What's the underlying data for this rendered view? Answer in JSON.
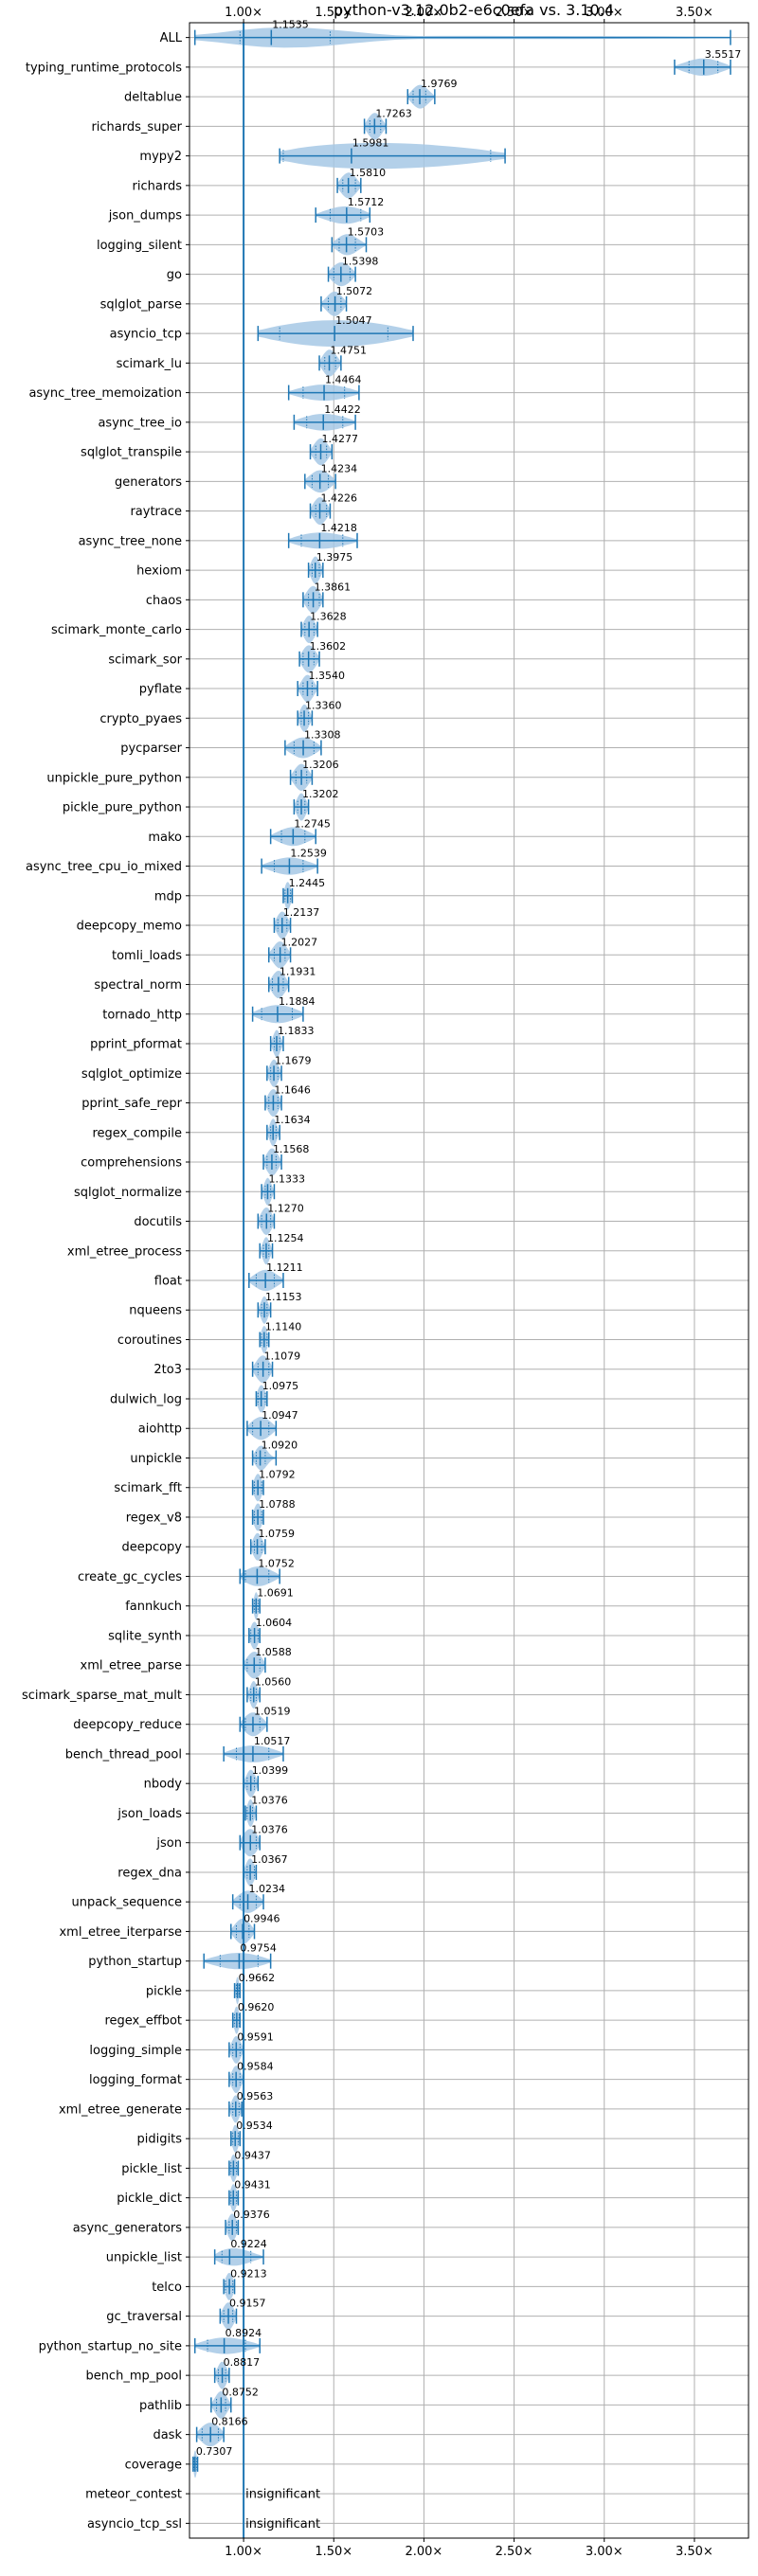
{
  "chart_data": {
    "type": "violin",
    "title": "python-v3.12.0b2-e6c0efa vs. 3.10.4",
    "xlabel": "",
    "ylabel": "",
    "xlim": [
      0.7,
      3.8
    ],
    "xticks": [
      {
        "value": 1.0,
        "label": "1.00×"
      },
      {
        "value": 1.5,
        "label": "1.50×"
      },
      {
        "value": 2.0,
        "label": "2.00×"
      },
      {
        "value": 2.5,
        "label": "2.50×"
      },
      {
        "value": 3.0,
        "label": "3.00×"
      },
      {
        "value": 3.5,
        "label": "3.50×"
      }
    ],
    "reference_line": 1.0,
    "grid": true,
    "colors": {
      "violin": "#a6c8e5",
      "line": "#1f77b4",
      "grid": "#b0b0b0"
    },
    "insignificant_text": "insignificant",
    "benchmarks": [
      {
        "name": "ALL",
        "label": "1.1535",
        "median": 1.1535,
        "min": 0.73,
        "max": 3.7,
        "q1": 0.98,
        "q3": 1.48,
        "width": 0.45
      },
      {
        "name": "typing_runtime_protocols",
        "label": "3.5517",
        "median": 3.5517,
        "min": 3.39,
        "max": 3.7,
        "q1": 3.47,
        "q3": 3.63,
        "width": 0.9
      },
      {
        "name": "deltablue",
        "label": "1.9769",
        "median": 1.9769,
        "min": 1.91,
        "max": 2.06,
        "q1": 1.94,
        "q3": 2.01,
        "width": 0.8
      },
      {
        "name": "richards_super",
        "label": "1.7263",
        "median": 1.7263,
        "min": 1.67,
        "max": 1.79,
        "q1": 1.7,
        "q3": 1.76,
        "width": 0.8
      },
      {
        "name": "mypy2",
        "label": "1.5981",
        "median": 1.5981,
        "min": 1.2,
        "max": 2.45,
        "q1": 1.22,
        "q3": 2.37,
        "width": 0.8
      },
      {
        "name": "richards",
        "label": "1.5810",
        "median": 1.581,
        "min": 1.52,
        "max": 1.65,
        "q1": 1.55,
        "q3": 1.62,
        "width": 0.8
      },
      {
        "name": "json_dumps",
        "label": "1.5712",
        "median": 1.5712,
        "min": 1.4,
        "max": 1.7,
        "q1": 1.48,
        "q3": 1.65,
        "width": 0.8
      },
      {
        "name": "logging_silent",
        "label": "1.5703",
        "median": 1.5703,
        "min": 1.49,
        "max": 1.68,
        "q1": 1.53,
        "q3": 1.62,
        "width": 0.8
      },
      {
        "name": "go",
        "label": "1.5398",
        "median": 1.5398,
        "min": 1.47,
        "max": 1.62,
        "q1": 1.5,
        "q3": 1.59,
        "width": 0.8
      },
      {
        "name": "sqlglot_parse",
        "label": "1.5072",
        "median": 1.5072,
        "min": 1.43,
        "max": 1.57,
        "q1": 1.47,
        "q3": 1.54,
        "width": 0.8
      },
      {
        "name": "asyncio_tcp",
        "label": "1.5047",
        "median": 1.5047,
        "min": 1.08,
        "max": 1.94,
        "q1": 1.2,
        "q3": 1.8,
        "width": 0.8
      },
      {
        "name": "scimark_lu",
        "label": "1.4751",
        "median": 1.4751,
        "min": 1.42,
        "max": 1.54,
        "q1": 1.45,
        "q3": 1.51,
        "width": 0.8
      },
      {
        "name": "async_tree_memoization",
        "label": "1.4464",
        "median": 1.4464,
        "min": 1.25,
        "max": 1.64,
        "q1": 1.33,
        "q3": 1.56,
        "width": 0.8
      },
      {
        "name": "async_tree_io",
        "label": "1.4422",
        "median": 1.4422,
        "min": 1.28,
        "max": 1.62,
        "q1": 1.35,
        "q3": 1.55,
        "width": 0.8
      },
      {
        "name": "sqlglot_transpile",
        "label": "1.4277",
        "median": 1.4277,
        "min": 1.37,
        "max": 1.49,
        "q1": 1.4,
        "q3": 1.46,
        "width": 0.8
      },
      {
        "name": "generators",
        "label": "1.4234",
        "median": 1.4234,
        "min": 1.34,
        "max": 1.51,
        "q1": 1.38,
        "q3": 1.47,
        "width": 0.8
      },
      {
        "name": "raytrace",
        "label": "1.4226",
        "median": 1.4226,
        "min": 1.37,
        "max": 1.48,
        "q1": 1.4,
        "q3": 1.46,
        "width": 0.8
      },
      {
        "name": "async_tree_none",
        "label": "1.4218",
        "median": 1.4218,
        "min": 1.25,
        "max": 1.63,
        "q1": 1.32,
        "q3": 1.55,
        "width": 0.8
      },
      {
        "name": "hexiom",
        "label": "1.3975",
        "median": 1.3975,
        "min": 1.36,
        "max": 1.44,
        "q1": 1.38,
        "q3": 1.42,
        "width": 0.8
      },
      {
        "name": "chaos",
        "label": "1.3861",
        "median": 1.3861,
        "min": 1.33,
        "max": 1.44,
        "q1": 1.36,
        "q3": 1.42,
        "width": 0.8
      },
      {
        "name": "scimark_monte_carlo",
        "label": "1.3628",
        "median": 1.3628,
        "min": 1.32,
        "max": 1.41,
        "q1": 1.34,
        "q3": 1.39,
        "width": 0.8
      },
      {
        "name": "scimark_sor",
        "label": "1.3602",
        "median": 1.3602,
        "min": 1.31,
        "max": 1.42,
        "q1": 1.33,
        "q3": 1.39,
        "width": 0.8
      },
      {
        "name": "pyflate",
        "label": "1.3540",
        "median": 1.354,
        "min": 1.3,
        "max": 1.41,
        "q1": 1.33,
        "q3": 1.38,
        "width": 0.8
      },
      {
        "name": "crypto_pyaes",
        "label": "1.3360",
        "median": 1.336,
        "min": 1.3,
        "max": 1.38,
        "q1": 1.32,
        "q3": 1.36,
        "width": 0.8
      },
      {
        "name": "pycparser",
        "label": "1.3308",
        "median": 1.3308,
        "min": 1.23,
        "max": 1.43,
        "q1": 1.28,
        "q3": 1.39,
        "width": 0.8
      },
      {
        "name": "unpickle_pure_python",
        "label": "1.3206",
        "median": 1.3206,
        "min": 1.26,
        "max": 1.38,
        "q1": 1.29,
        "q3": 1.35,
        "width": 0.8
      },
      {
        "name": "pickle_pure_python",
        "label": "1.3202",
        "median": 1.3202,
        "min": 1.28,
        "max": 1.36,
        "q1": 1.3,
        "q3": 1.34,
        "width": 0.8
      },
      {
        "name": "mako",
        "label": "1.2745",
        "median": 1.2745,
        "min": 1.15,
        "max": 1.4,
        "q1": 1.21,
        "q3": 1.34,
        "width": 0.8
      },
      {
        "name": "async_tree_cpu_io_mixed",
        "label": "1.2539",
        "median": 1.2539,
        "min": 1.1,
        "max": 1.41,
        "q1": 1.17,
        "q3": 1.33,
        "width": 0.8
      },
      {
        "name": "mdp",
        "label": "1.2445",
        "median": 1.2445,
        "min": 1.22,
        "max": 1.27,
        "q1": 1.23,
        "q3": 1.26,
        "width": 0.8
      },
      {
        "name": "deepcopy_memo",
        "label": "1.2137",
        "median": 1.2137,
        "min": 1.17,
        "max": 1.26,
        "q1": 1.19,
        "q3": 1.24,
        "width": 0.8
      },
      {
        "name": "tomli_loads",
        "label": "1.2027",
        "median": 1.2027,
        "min": 1.14,
        "max": 1.26,
        "q1": 1.17,
        "q3": 1.23,
        "width": 0.8
      },
      {
        "name": "spectral_norm",
        "label": "1.1931",
        "median": 1.1931,
        "min": 1.14,
        "max": 1.25,
        "q1": 1.16,
        "q3": 1.22,
        "width": 0.8
      },
      {
        "name": "tornado_http",
        "label": "1.1884",
        "median": 1.1884,
        "min": 1.05,
        "max": 1.33,
        "q1": 1.1,
        "q3": 1.27,
        "width": 0.8
      },
      {
        "name": "pprint_pformat",
        "label": "1.1833",
        "median": 1.1833,
        "min": 1.15,
        "max": 1.22,
        "q1": 1.17,
        "q3": 1.2,
        "width": 0.8
      },
      {
        "name": "sqlglot_optimize",
        "label": "1.1679",
        "median": 1.1679,
        "min": 1.13,
        "max": 1.21,
        "q1": 1.15,
        "q3": 1.19,
        "width": 0.8
      },
      {
        "name": "pprint_safe_repr",
        "label": "1.1646",
        "median": 1.1646,
        "min": 1.12,
        "max": 1.21,
        "q1": 1.14,
        "q3": 1.19,
        "width": 0.8
      },
      {
        "name": "regex_compile",
        "label": "1.1634",
        "median": 1.1634,
        "min": 1.13,
        "max": 1.2,
        "q1": 1.15,
        "q3": 1.18,
        "width": 0.8
      },
      {
        "name": "comprehensions",
        "label": "1.1568",
        "median": 1.1568,
        "min": 1.11,
        "max": 1.21,
        "q1": 1.13,
        "q3": 1.18,
        "width": 0.8
      },
      {
        "name": "sqlglot_normalize",
        "label": "1.1333",
        "median": 1.1333,
        "min": 1.1,
        "max": 1.17,
        "q1": 1.12,
        "q3": 1.15,
        "width": 0.8
      },
      {
        "name": "docutils",
        "label": "1.1270",
        "median": 1.127,
        "min": 1.08,
        "max": 1.17,
        "q1": 1.1,
        "q3": 1.15,
        "width": 0.8
      },
      {
        "name": "xml_etree_process",
        "label": "1.1254",
        "median": 1.1254,
        "min": 1.09,
        "max": 1.16,
        "q1": 1.11,
        "q3": 1.14,
        "width": 0.8
      },
      {
        "name": "float",
        "label": "1.1211",
        "median": 1.1211,
        "min": 1.03,
        "max": 1.22,
        "q1": 1.07,
        "q3": 1.17,
        "width": 0.8
      },
      {
        "name": "nqueens",
        "label": "1.1153",
        "median": 1.1153,
        "min": 1.08,
        "max": 1.15,
        "q1": 1.1,
        "q3": 1.13,
        "width": 0.8
      },
      {
        "name": "coroutines",
        "label": "1.1140",
        "median": 1.114,
        "min": 1.09,
        "max": 1.14,
        "q1": 1.1,
        "q3": 1.13,
        "width": 0.8
      },
      {
        "name": "2to3",
        "label": "1.1079",
        "median": 1.1079,
        "min": 1.05,
        "max": 1.16,
        "q1": 1.08,
        "q3": 1.14,
        "width": 0.8
      },
      {
        "name": "dulwich_log",
        "label": "1.0975",
        "median": 1.0975,
        "min": 1.07,
        "max": 1.13,
        "q1": 1.08,
        "q3": 1.12,
        "width": 0.8
      },
      {
        "name": "aiohttp",
        "label": "1.0947",
        "median": 1.0947,
        "min": 1.02,
        "max": 1.18,
        "q1": 1.05,
        "q3": 1.14,
        "width": 0.8
      },
      {
        "name": "unpickle",
        "label": "1.0920",
        "median": 1.092,
        "min": 1.05,
        "max": 1.18,
        "q1": 1.07,
        "q3": 1.12,
        "width": 0.8
      },
      {
        "name": "scimark_fft",
        "label": "1.0792",
        "median": 1.0792,
        "min": 1.05,
        "max": 1.11,
        "q1": 1.06,
        "q3": 1.1,
        "width": 0.8
      },
      {
        "name": "regex_v8",
        "label": "1.0788",
        "median": 1.0788,
        "min": 1.05,
        "max": 1.11,
        "q1": 1.06,
        "q3": 1.1,
        "width": 0.8
      },
      {
        "name": "deepcopy",
        "label": "1.0759",
        "median": 1.0759,
        "min": 1.04,
        "max": 1.12,
        "q1": 1.06,
        "q3": 1.1,
        "width": 0.8
      },
      {
        "name": "create_gc_cycles",
        "label": "1.0752",
        "median": 1.0752,
        "min": 0.98,
        "max": 1.2,
        "q1": 1.01,
        "q3": 1.14,
        "width": 0.8
      },
      {
        "name": "fannkuch",
        "label": "1.0691",
        "median": 1.0691,
        "min": 1.05,
        "max": 1.09,
        "q1": 1.06,
        "q3": 1.08,
        "width": 0.8
      },
      {
        "name": "sqlite_synth",
        "label": "1.0604",
        "median": 1.0604,
        "min": 1.03,
        "max": 1.09,
        "q1": 1.04,
        "q3": 1.08,
        "width": 0.8
      },
      {
        "name": "xml_etree_parse",
        "label": "1.0588",
        "median": 1.0588,
        "min": 1.0,
        "max": 1.12,
        "q1": 1.02,
        "q3": 1.09,
        "width": 0.8
      },
      {
        "name": "scimark_sparse_mat_mult",
        "label": "1.0560",
        "median": 1.056,
        "min": 1.02,
        "max": 1.09,
        "q1": 1.04,
        "q3": 1.07,
        "width": 0.8
      },
      {
        "name": "deepcopy_reduce",
        "label": "1.0519",
        "median": 1.0519,
        "min": 0.98,
        "max": 1.13,
        "q1": 1.01,
        "q3": 1.09,
        "width": 0.8
      },
      {
        "name": "bench_thread_pool",
        "label": "1.0517",
        "median": 1.0517,
        "min": 0.89,
        "max": 1.22,
        "q1": 0.96,
        "q3": 1.14,
        "width": 0.8
      },
      {
        "name": "nbody",
        "label": "1.0399",
        "median": 1.0399,
        "min": 1.0,
        "max": 1.08,
        "q1": 1.02,
        "q3": 1.06,
        "width": 0.8
      },
      {
        "name": "json_loads",
        "label": "1.0376",
        "median": 1.0376,
        "min": 1.01,
        "max": 1.07,
        "q1": 1.02,
        "q3": 1.05,
        "width": 0.8
      },
      {
        "name": "json",
        "label": "1.0376",
        "median": 1.0376,
        "min": 0.98,
        "max": 1.09,
        "q1": 1.0,
        "q3": 1.07,
        "width": 0.8
      },
      {
        "name": "regex_dna",
        "label": "1.0367",
        "median": 1.0367,
        "min": 1.0,
        "max": 1.07,
        "q1": 1.02,
        "q3": 1.06,
        "width": 0.8
      },
      {
        "name": "unpack_sequence",
        "label": "1.0234",
        "median": 1.0234,
        "min": 0.94,
        "max": 1.11,
        "q1": 0.98,
        "q3": 1.07,
        "width": 0.8
      },
      {
        "name": "xml_etree_iterparse",
        "label": "0.9946",
        "median": 0.9946,
        "min": 0.93,
        "max": 1.06,
        "q1": 0.96,
        "q3": 1.03,
        "width": 0.8
      },
      {
        "name": "python_startup",
        "label": "0.9754",
        "median": 0.9754,
        "min": 0.78,
        "max": 1.15,
        "q1": 0.87,
        "q3": 1.08,
        "width": 0.8
      },
      {
        "name": "pickle",
        "label": "0.9662",
        "median": 0.9662,
        "min": 0.95,
        "max": 0.98,
        "q1": 0.96,
        "q3": 0.975,
        "width": 0.8
      },
      {
        "name": "regex_effbot",
        "label": "0.9620",
        "median": 0.962,
        "min": 0.94,
        "max": 0.98,
        "q1": 0.95,
        "q3": 0.975,
        "width": 0.8
      },
      {
        "name": "logging_simple",
        "label": "0.9591",
        "median": 0.9591,
        "min": 0.92,
        "max": 1.0,
        "q1": 0.94,
        "q3": 0.98,
        "width": 0.8
      },
      {
        "name": "logging_format",
        "label": "0.9584",
        "median": 0.9584,
        "min": 0.92,
        "max": 1.0,
        "q1": 0.94,
        "q3": 0.98,
        "width": 0.8
      },
      {
        "name": "xml_etree_generate",
        "label": "0.9563",
        "median": 0.9563,
        "min": 0.92,
        "max": 0.99,
        "q1": 0.94,
        "q3": 0.975,
        "width": 0.8
      },
      {
        "name": "pidigits",
        "label": "0.9534",
        "median": 0.9534,
        "min": 0.93,
        "max": 0.98,
        "q1": 0.94,
        "q3": 0.97,
        "width": 0.8
      },
      {
        "name": "pickle_list",
        "label": "0.9437",
        "median": 0.9437,
        "min": 0.92,
        "max": 0.97,
        "q1": 0.93,
        "q3": 0.96,
        "width": 0.8
      },
      {
        "name": "pickle_dict",
        "label": "0.9431",
        "median": 0.9431,
        "min": 0.92,
        "max": 0.97,
        "q1": 0.93,
        "q3": 0.96,
        "width": 0.8
      },
      {
        "name": "async_generators",
        "label": "0.9376",
        "median": 0.9376,
        "min": 0.9,
        "max": 0.97,
        "q1": 0.92,
        "q3": 0.96,
        "width": 0.8
      },
      {
        "name": "unpickle_list",
        "label": "0.9224",
        "median": 0.9224,
        "min": 0.84,
        "max": 1.11,
        "q1": 0.88,
        "q3": 1.04,
        "width": 0.8
      },
      {
        "name": "telco",
        "label": "0.9213",
        "median": 0.9213,
        "min": 0.89,
        "max": 0.95,
        "q1": 0.9,
        "q3": 0.94,
        "width": 0.8
      },
      {
        "name": "gc_traversal",
        "label": "0.9157",
        "median": 0.9157,
        "min": 0.87,
        "max": 0.96,
        "q1": 0.89,
        "q3": 0.94,
        "width": 0.8
      },
      {
        "name": "python_startup_no_site",
        "label": "0.8924",
        "median": 0.8924,
        "min": 0.73,
        "max": 1.09,
        "q1": 0.8,
        "q3": 1.01,
        "width": 0.8
      },
      {
        "name": "bench_mp_pool",
        "label": "0.8817",
        "median": 0.8817,
        "min": 0.84,
        "max": 0.92,
        "q1": 0.86,
        "q3": 0.9,
        "width": 0.8
      },
      {
        "name": "pathlib",
        "label": "0.8752",
        "median": 0.8752,
        "min": 0.82,
        "max": 0.93,
        "q1": 0.85,
        "q3": 0.9,
        "width": 0.8
      },
      {
        "name": "dask",
        "label": "0.8166",
        "median": 0.8166,
        "min": 0.74,
        "max": 0.89,
        "q1": 0.77,
        "q3": 0.86,
        "width": 0.8
      },
      {
        "name": "coverage",
        "label": "0.7307",
        "median": 0.7307,
        "min": 0.72,
        "max": 0.745,
        "q1": 0.725,
        "q3": 0.74,
        "width": 0.8
      },
      {
        "name": "meteor_contest",
        "insignificant": true
      },
      {
        "name": "asyncio_tcp_ssl",
        "insignificant": true
      }
    ]
  }
}
